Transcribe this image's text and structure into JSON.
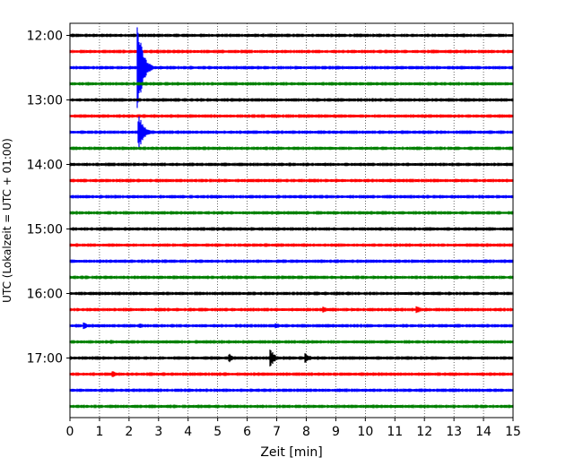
{
  "chart_data": {
    "type": "line",
    "title": "",
    "xlabel": "Zeit  [min]",
    "ylabel": "UTC (Lokalzeit = UTC + 01:00)",
    "xlim": [
      0,
      15
    ],
    "x_ticks": [
      0,
      1,
      2,
      3,
      4,
      5,
      6,
      7,
      8,
      9,
      10,
      11,
      12,
      13,
      14,
      15
    ],
    "y_ticks": [
      "12:00",
      "13:00",
      "14:00",
      "15:00",
      "16:00",
      "17:00"
    ],
    "trace_start": "12:00",
    "trace_interval_minutes": 15,
    "grid": {
      "vertical": "dotted",
      "horizontal": false
    },
    "trace_colors": [
      "#000000",
      "#ff0000",
      "#0000ff",
      "#008000"
    ],
    "series": [
      {
        "start": "12:00",
        "color": "#000000",
        "events": []
      },
      {
        "start": "12:15",
        "color": "#ff0000",
        "events": []
      },
      {
        "start": "12:30",
        "color": "#0000ff",
        "events": [
          {
            "minute": 2.3,
            "amplitude": 8.6
          }
        ]
      },
      {
        "start": "12:45",
        "color": "#008000",
        "events": []
      },
      {
        "start": "13:00",
        "color": "#000000",
        "events": []
      },
      {
        "start": "13:15",
        "color": "#ff0000",
        "events": []
      },
      {
        "start": "13:30",
        "color": "#0000ff",
        "events": [
          {
            "minute": 2.35,
            "amplitude": 3.2
          }
        ]
      },
      {
        "start": "13:45",
        "color": "#008000",
        "events": []
      },
      {
        "start": "14:00",
        "color": "#000000",
        "events": []
      },
      {
        "start": "14:15",
        "color": "#ff0000",
        "events": []
      },
      {
        "start": "14:30",
        "color": "#0000ff",
        "events": []
      },
      {
        "start": "14:45",
        "color": "#008000",
        "events": []
      },
      {
        "start": "15:00",
        "color": "#000000",
        "events": []
      },
      {
        "start": "15:15",
        "color": "#ff0000",
        "events": []
      },
      {
        "start": "15:30",
        "color": "#0000ff",
        "events": []
      },
      {
        "start": "15:45",
        "color": "#008000",
        "events": []
      },
      {
        "start": "16:00",
        "color": "#000000",
        "events": []
      },
      {
        "start": "16:15",
        "color": "#ff0000",
        "events": [
          {
            "minute": 8.6,
            "amplitude": 0.6
          },
          {
            "minute": 11.75,
            "amplitude": 0.8
          }
        ]
      },
      {
        "start": "16:30",
        "color": "#0000ff",
        "events": [
          {
            "minute": 0.5,
            "amplitude": 0.7
          },
          {
            "minute": 2.4,
            "amplitude": 0.6
          },
          {
            "minute": 7.0,
            "amplitude": 0.5
          },
          {
            "minute": 8.9,
            "amplitude": 0.4
          }
        ]
      },
      {
        "start": "16:45",
        "color": "#008000",
        "events": [
          {
            "minute": 1.4,
            "amplitude": 0.4
          }
        ]
      },
      {
        "start": "17:00",
        "color": "#000000",
        "events": [
          {
            "minute": 5.4,
            "amplitude": 0.8
          },
          {
            "minute": 6.8,
            "amplitude": 1.6
          },
          {
            "minute": 8.0,
            "amplitude": 1.0
          }
        ]
      },
      {
        "start": "17:15",
        "color": "#ff0000",
        "events": [
          {
            "minute": 1.45,
            "amplitude": 0.6
          }
        ]
      },
      {
        "start": "17:30",
        "color": "#0000ff",
        "events": []
      },
      {
        "start": "17:45",
        "color": "#008000",
        "events": []
      }
    ]
  }
}
